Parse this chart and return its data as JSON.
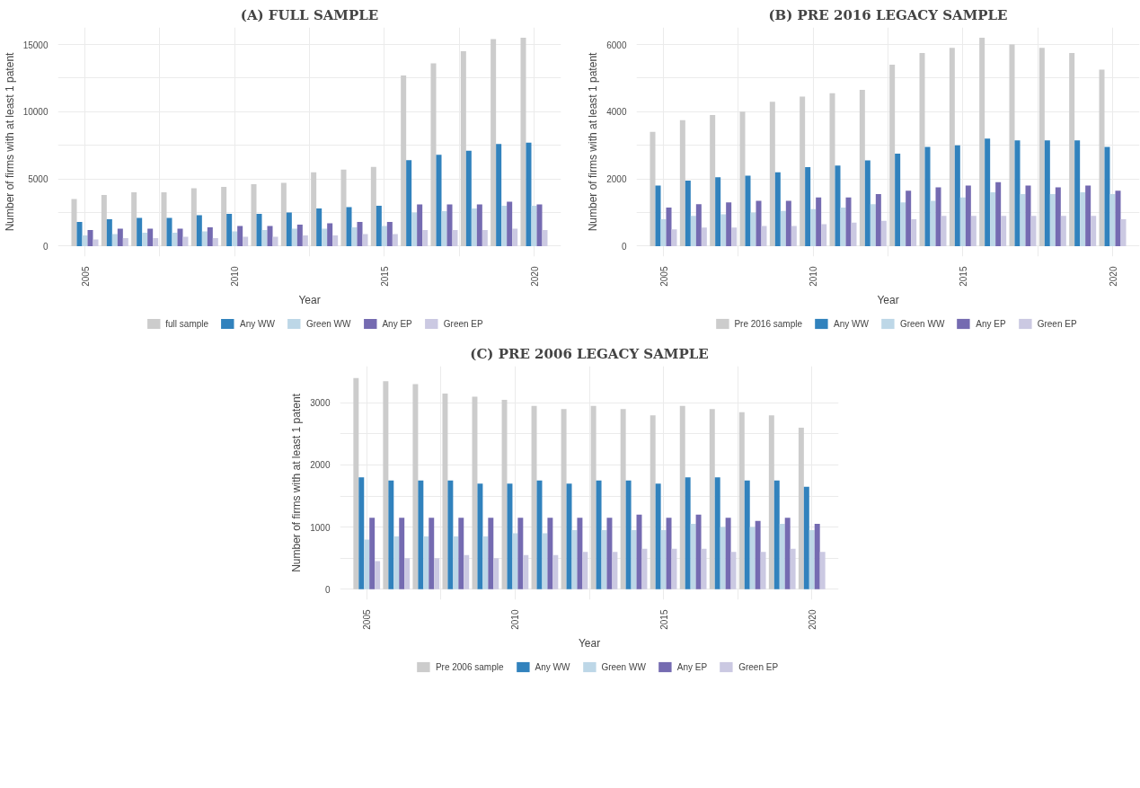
{
  "chart_data": [
    {
      "type": "bar",
      "title": "(A) FULL SAMPLE",
      "xlabel": "Year",
      "ylabel": "Number of firms with at least 1 patent",
      "x": [
        2005,
        2006,
        2007,
        2008,
        2009,
        2010,
        2011,
        2012,
        2013,
        2014,
        2015,
        2016,
        2017,
        2018,
        2019,
        2020
      ],
      "xlim": [
        2004.1,
        2020.9
      ],
      "xticks": [
        2005,
        {
          "value": 2007.5,
          "label": null
        },
        2010,
        {
          "value": 2012.5,
          "label": null
        },
        2015,
        {
          "value": 2017.5,
          "label": null
        },
        2020
      ],
      "ylim": [
        -775,
        16275
      ],
      "yticks": [
        0,
        {
          "value": 2500,
          "label": null
        },
        5000,
        {
          "value": 7500,
          "label": null
        },
        10000,
        {
          "value": 12500,
          "label": null
        },
        15000
      ],
      "grid": true,
      "legend": "bottom",
      "series": [
        {
          "name": "full sample",
          "color": "#cccccc",
          "values": [
            3500,
            3800,
            4000,
            4000,
            4300,
            4400,
            4600,
            4700,
            5500,
            5700,
            5900,
            12700,
            13600,
            14500,
            15400,
            15500
          ]
        },
        {
          "name": "Any WW",
          "color": "#3182bd",
          "values": [
            1800,
            2000,
            2100,
            2100,
            2300,
            2400,
            2400,
            2500,
            2800,
            2900,
            3000,
            6400,
            6800,
            7100,
            7600,
            7700
          ]
        },
        {
          "name": "Green WW",
          "color": "#bdd7e7",
          "values": [
            800,
            900,
            1000,
            1000,
            1100,
            1100,
            1200,
            1300,
            1300,
            1400,
            1500,
            2500,
            2600,
            2800,
            3000,
            3000
          ]
        },
        {
          "name": "Any EP",
          "color": "#756bb1",
          "values": [
            1200,
            1300,
            1300,
            1300,
            1400,
            1500,
            1500,
            1600,
            1700,
            1800,
            1800,
            3100,
            3100,
            3100,
            3300,
            3100
          ]
        },
        {
          "name": "Green EP",
          "color": "#cbc9e2",
          "values": [
            500,
            600,
            600,
            700,
            600,
            700,
            700,
            800,
            800,
            900,
            900,
            1200,
            1200,
            1200,
            1300,
            1200
          ]
        }
      ]
    },
    {
      "type": "bar",
      "title": "(B) PRE 2016 LEGACY SAMPLE",
      "xlabel": "Year",
      "ylabel": "Number of firms with at least 1 patent",
      "x": [
        2005,
        2006,
        2007,
        2008,
        2009,
        2010,
        2011,
        2012,
        2013,
        2014,
        2015,
        2016,
        2017,
        2018,
        2019,
        2020
      ],
      "xlim": [
        2004.1,
        2020.9
      ],
      "xticks": [
        2005,
        {
          "value": 2007.5,
          "label": null
        },
        2010,
        {
          "value": 2012.5,
          "label": null
        },
        2015,
        {
          "value": 2017.5,
          "label": null
        },
        2020
      ],
      "ylim": [
        -310,
        6510
      ],
      "yticks": [
        0,
        {
          "value": 1000,
          "label": null
        },
        2000,
        {
          "value": 3000,
          "label": null
        },
        4000,
        {
          "value": 5000,
          "label": null
        },
        6000
      ],
      "grid": true,
      "legend": "bottom",
      "series": [
        {
          "name": "Pre 2016 sample",
          "color": "#cccccc",
          "values": [
            3400,
            3750,
            3900,
            4000,
            4300,
            4450,
            4550,
            4650,
            5400,
            5750,
            5900,
            6200,
            6000,
            5900,
            5750,
            5250
          ]
        },
        {
          "name": "Any WW",
          "color": "#3182bd",
          "values": [
            1800,
            1950,
            2050,
            2100,
            2200,
            2350,
            2400,
            2550,
            2750,
            2950,
            3000,
            3200,
            3150,
            3150,
            3150,
            2950
          ]
        },
        {
          "name": "Green WW",
          "color": "#bdd7e7",
          "values": [
            800,
            900,
            950,
            1000,
            1050,
            1100,
            1150,
            1250,
            1300,
            1350,
            1450,
            1600,
            1550,
            1550,
            1600,
            1550
          ]
        },
        {
          "name": "Any EP",
          "color": "#756bb1",
          "values": [
            1150,
            1250,
            1300,
            1350,
            1350,
            1450,
            1450,
            1550,
            1650,
            1750,
            1800,
            1900,
            1800,
            1750,
            1800,
            1650
          ]
        },
        {
          "name": "Green EP",
          "color": "#cbc9e2",
          "values": [
            500,
            550,
            550,
            600,
            600,
            650,
            700,
            750,
            800,
            900,
            900,
            900,
            900,
            900,
            900,
            800
          ]
        }
      ]
    },
    {
      "type": "bar",
      "title": "(C) PRE 2006 LEGACY SAMPLE",
      "xlabel": "Year",
      "ylabel": "Number of firms with at least 1 patent",
      "x": [
        2005,
        2006,
        2007,
        2008,
        2009,
        2010,
        2011,
        2012,
        2013,
        2014,
        2015,
        2016,
        2017,
        2018,
        2019,
        2020
      ],
      "xlim": [
        2004.1,
        2020.9
      ],
      "xticks": [
        2005,
        {
          "value": 2007.5,
          "label": null
        },
        2010,
        {
          "value": 2012.5,
          "label": null
        },
        2015,
        {
          "value": 2017.5,
          "label": null
        },
        2020
      ],
      "ylim": [
        -171,
        3591
      ],
      "yticks": [
        0,
        {
          "value": 500,
          "label": null
        },
        1000,
        {
          "value": 1500,
          "label": null
        },
        2000,
        {
          "value": 2500,
          "label": null
        },
        3000
      ],
      "grid": true,
      "legend": "bottom",
      "series": [
        {
          "name": "Pre 2006 sample",
          "color": "#cccccc",
          "values": [
            3400,
            3350,
            3300,
            3150,
            3100,
            3050,
            2950,
            2900,
            2950,
            2900,
            2800,
            2950,
            2900,
            2850,
            2800,
            2600
          ]
        },
        {
          "name": "Any WW",
          "color": "#3182bd",
          "values": [
            1800,
            1750,
            1750,
            1750,
            1700,
            1700,
            1750,
            1700,
            1750,
            1750,
            1700,
            1800,
            1800,
            1750,
            1750,
            1650
          ]
        },
        {
          "name": "Green WW",
          "color": "#bdd7e7",
          "values": [
            800,
            850,
            850,
            850,
            850,
            900,
            900,
            950,
            950,
            950,
            950,
            1050,
            1000,
            1000,
            1050,
            950
          ]
        },
        {
          "name": "Any EP",
          "color": "#756bb1",
          "values": [
            1150,
            1150,
            1150,
            1150,
            1150,
            1150,
            1150,
            1150,
            1150,
            1200,
            1150,
            1200,
            1150,
            1100,
            1150,
            1050
          ]
        },
        {
          "name": "Green EP",
          "color": "#cbc9e2",
          "values": [
            450,
            500,
            500,
            550,
            500,
            550,
            550,
            600,
            600,
            650,
            650,
            650,
            600,
            600,
            650,
            600
          ]
        }
      ]
    }
  ]
}
